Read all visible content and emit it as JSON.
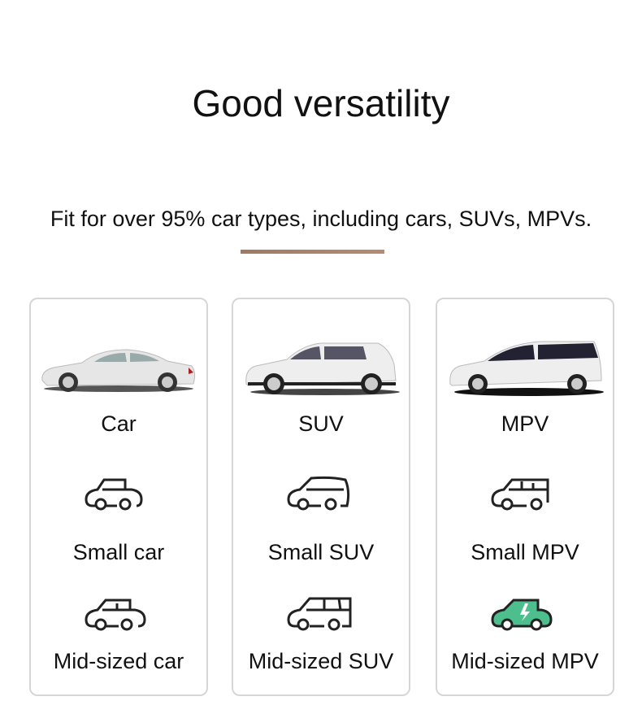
{
  "title": "Good versatility",
  "subtitle": "Fit for over 95% car types, including cars, SUVs, MPVs.",
  "accent_color": "#a8826a",
  "cards": [
    {
      "name": "Car",
      "photo": "sedan-photo",
      "items": [
        {
          "label": "Small car",
          "icon": "small-car-icon"
        },
        {
          "label": "Mid-sized car",
          "icon": "mid-sized-car-icon"
        }
      ]
    },
    {
      "name": "SUV",
      "photo": "suv-photo",
      "items": [
        {
          "label": "Small SUV",
          "icon": "small-suv-icon"
        },
        {
          "label": "Mid-sized SUV",
          "icon": "mid-sized-suv-icon"
        }
      ]
    },
    {
      "name": "MPV",
      "photo": "mpv-photo",
      "items": [
        {
          "label": "Small MPV",
          "icon": "small-mpv-icon"
        },
        {
          "label": "Mid-sized MPV",
          "icon": "electric-car-icon",
          "icon_color": "#4dbf8f"
        }
      ]
    }
  ]
}
